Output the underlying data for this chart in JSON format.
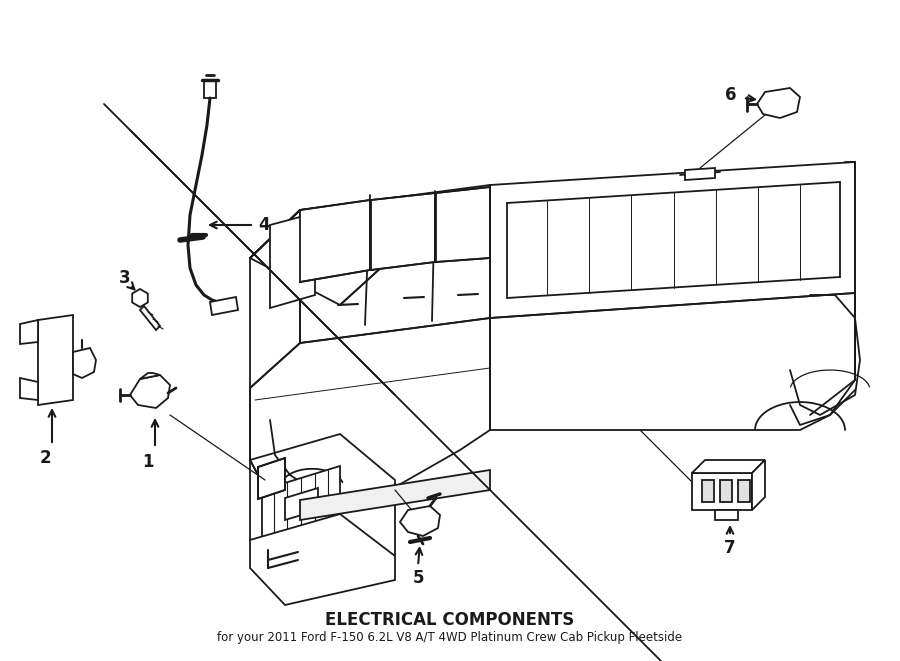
{
  "bg_color": "#ffffff",
  "line_color": "#1a1a1a",
  "title": "ELECTRICAL COMPONENTS",
  "subtitle": "for your 2011 Ford F-150 6.2L V8 A/T 4WD Platinum Crew Cab Pickup Fleetside",
  "title_fontsize": 12,
  "subtitle_fontsize": 8.5,
  "label_fontsize": 12,
  "arrow_color": "#1a1a1a"
}
